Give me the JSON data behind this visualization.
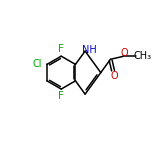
{
  "background_color": "#ffffff",
  "bond_color": "#000000",
  "atom_colors": {
    "C": "#000000",
    "N": "#0000cc",
    "O": "#cc0000",
    "F": "#00aa00",
    "Cl": "#00aa00"
  },
  "figsize": [
    1.52,
    1.52
  ],
  "dpi": 100,
  "bond_lw": 1.1,
  "font_size": 7.0
}
